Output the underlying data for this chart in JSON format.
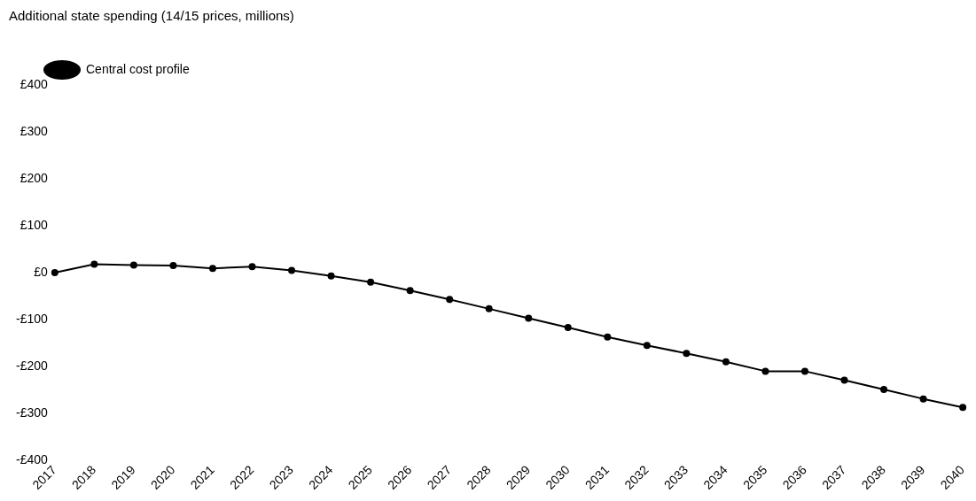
{
  "chart_data": {
    "type": "line",
    "title": "Additional state spending (14/15 prices, millions)",
    "categories": [
      "2017",
      "2018",
      "2019",
      "2020",
      "2021",
      "2022",
      "2023",
      "2024",
      "2025",
      "2026",
      "2027",
      "2028",
      "2029",
      "2030",
      "2031",
      "2032",
      "2033",
      "2034",
      "2035",
      "2036",
      "2037",
      "2038",
      "2039",
      "2040"
    ],
    "series": [
      {
        "name": "Central cost profile",
        "color": "#000000",
        "values": [
          0,
          18,
          16,
          15,
          9,
          13,
          5,
          -7,
          -20,
          -38,
          -57,
          -77,
          -97,
          -117,
          -137,
          -155,
          -172,
          -190,
          -210,
          -210,
          -229,
          -249,
          -269,
          -287
        ]
      }
    ],
    "ylim": [
      -400,
      400
    ],
    "yticks": [
      {
        "value": 400,
        "label": "£400"
      },
      {
        "value": 300,
        "label": "£300"
      },
      {
        "value": 200,
        "label": "£200"
      },
      {
        "value": 100,
        "label": "£100"
      },
      {
        "value": 0,
        "label": "£0"
      },
      {
        "value": -100,
        "label": "-£100"
      },
      {
        "value": -200,
        "label": "-£200"
      },
      {
        "value": -300,
        "label": "-£300"
      },
      {
        "value": -400,
        "label": "-£400"
      }
    ],
    "grid": false,
    "legend": "top left",
    "marker": "circle",
    "line_style": "solid"
  }
}
